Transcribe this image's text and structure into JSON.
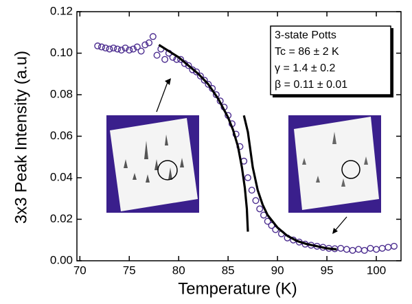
{
  "chart_data": {
    "type": "scatter",
    "xlabel": "Temperature (K)",
    "ylabel": "3x3 Peak Intensity  (a.u)",
    "annotations": [
      "3-state Potts",
      "Tc = 86 ± 2 K",
      "γ = 1.4 ± 0.2",
      "β = 0.11 ± 0.01"
    ],
    "xlim": [
      69.7,
      102.5
    ],
    "ylim": [
      0,
      0.12
    ],
    "xticks": [
      70,
      75,
      80,
      85,
      90,
      95,
      100
    ],
    "yticks": [
      {
        "value": 0,
        "label": "0.00"
      },
      {
        "value": 0.02,
        "label": "0.02"
      },
      {
        "value": 0.04,
        "label": "0.04"
      },
      {
        "value": 0.06,
        "label": "0.06"
      },
      {
        "value": 0.08,
        "label": "0.08"
      },
      {
        "value": 0.1,
        "label": "0.10"
      },
      {
        "value": 0.12,
        "label": "0.12"
      }
    ],
    "series": [
      {
        "kind": "points",
        "color": "#4b2c8f",
        "x": [
          71.8,
          72.2,
          72.6,
          73.0,
          73.4,
          73.8,
          74.2,
          74.6,
          75.0,
          75.4,
          75.8,
          76.2,
          76.6,
          77.0,
          77.4,
          77.8,
          78.2,
          78.6,
          79.0,
          79.4,
          79.8,
          80.2,
          80.6,
          81.0,
          81.4,
          81.8,
          82.2,
          82.6,
          83.0,
          83.4,
          83.8,
          84.2,
          84.6,
          85.0,
          85.4,
          85.8,
          86.2,
          86.6,
          87.0,
          87.4,
          87.8,
          88.2,
          88.6,
          89.0,
          89.4,
          89.8,
          90.4,
          91.0,
          91.6,
          92.2,
          92.8,
          93.4,
          94.0,
          94.6,
          95.2,
          95.8,
          96.4,
          97.0,
          97.6,
          98.2,
          98.8,
          99.4,
          100.0,
          100.6,
          101.2,
          101.8
        ],
        "values": [
          0.1035,
          0.103,
          0.1025,
          0.102,
          0.1025,
          0.102,
          0.1015,
          0.1025,
          0.1015,
          0.102,
          0.103,
          0.101,
          0.104,
          0.105,
          0.108,
          0.099,
          0.102,
          0.097,
          0.1,
          0.098,
          0.097,
          0.097,
          0.095,
          0.094,
          0.092,
          0.091,
          0.089,
          0.087,
          0.085,
          0.083,
          0.08,
          0.077,
          0.074,
          0.07,
          0.066,
          0.061,
          0.055,
          0.048,
          0.04,
          0.034,
          0.029,
          0.025,
          0.022,
          0.019,
          0.017,
          0.015,
          0.013,
          0.011,
          0.01,
          0.009,
          0.008,
          0.0075,
          0.007,
          0.0065,
          0.006,
          0.0058,
          0.006,
          0.0055,
          0.005,
          0.0055,
          0.005,
          0.006,
          0.0055,
          0.006,
          0.0065,
          0.007
        ]
      },
      {
        "kind": "line",
        "color": "#000000",
        "x": [
          78,
          80,
          82,
          83,
          84,
          85,
          85.5,
          86,
          86.4,
          86.7,
          86.9,
          87.0
        ],
        "values": [
          0.104,
          0.098,
          0.09,
          0.085,
          0.078,
          0.069,
          0.063,
          0.055,
          0.045,
          0.035,
          0.025,
          0.014
        ]
      },
      {
        "kind": "line",
        "color": "#000000",
        "x": [
          86.6,
          87.0,
          87.5,
          88,
          88.5,
          89,
          90,
          91,
          92,
          93,
          94,
          95,
          96
        ],
        "values": [
          0.07,
          0.062,
          0.045,
          0.034,
          0.027,
          0.022,
          0.016,
          0.012,
          0.0095,
          0.008,
          0.007,
          0.006,
          0.0055
        ]
      }
    ]
  }
}
